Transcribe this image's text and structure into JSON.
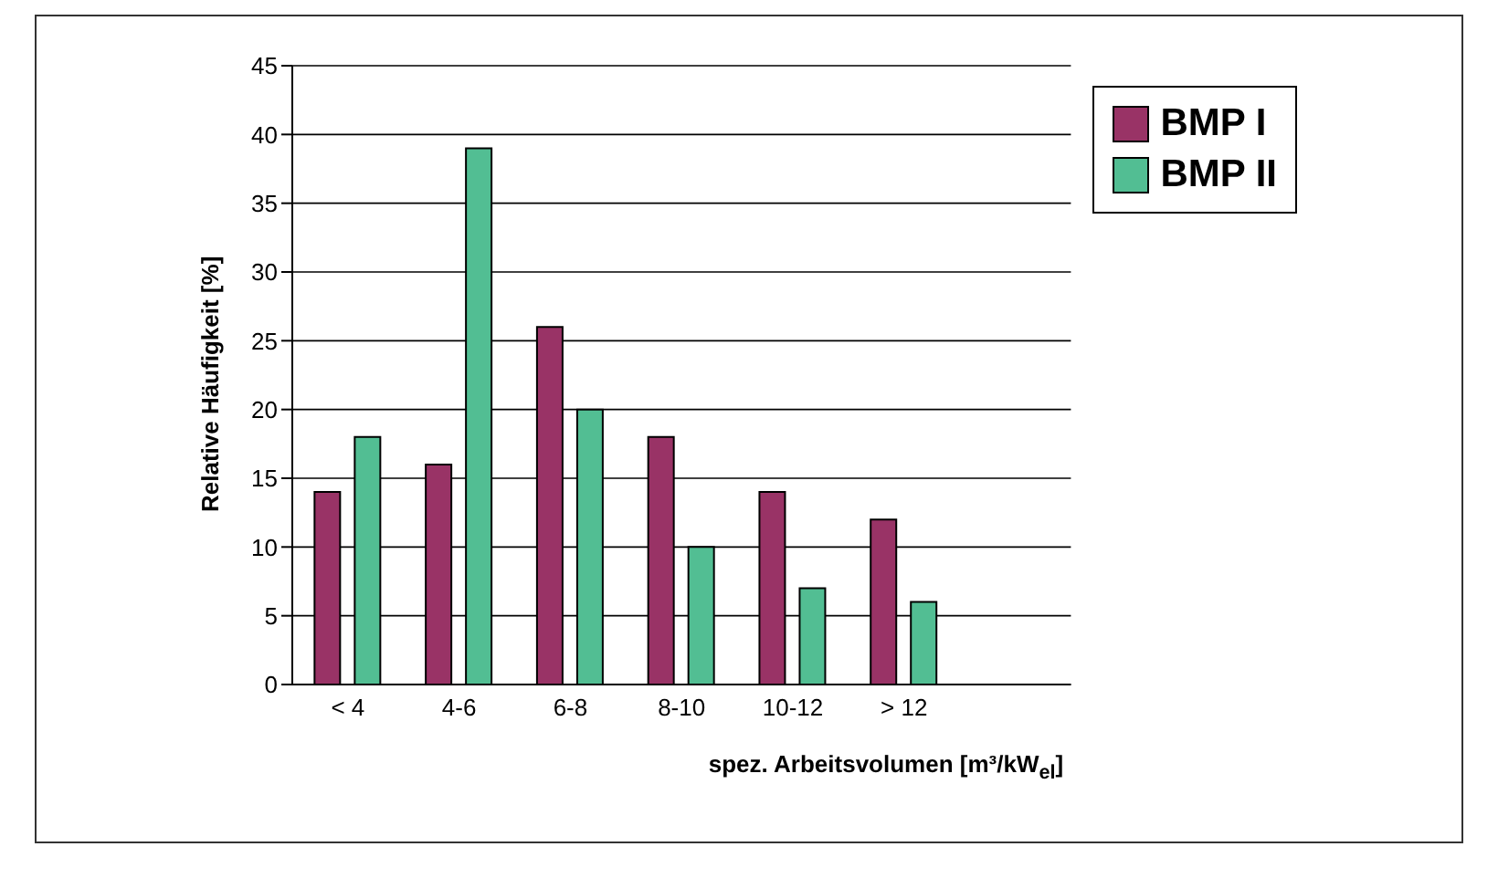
{
  "chart_data": {
    "type": "bar",
    "xlabel": "spez. Arbeitsvolumen [m³/kW$_{el}$]",
    "ylabel": "Relative Häufigkeit [%]",
    "categories": [
      "< 4",
      "4-6",
      "6-8",
      "8-10",
      "10-12",
      "> 12",
      null
    ],
    "series": [
      {
        "name": "BMP I",
        "color": "#993366",
        "values": [
          14,
          16,
          26,
          18,
          14,
          12,
          null
        ]
      },
      {
        "name": "BMP II",
        "color": "#52be93",
        "values": [
          18,
          39,
          20,
          10,
          7,
          6,
          null
        ]
      }
    ],
    "ylim": [
      0,
      45
    ],
    "yticks": [
      0,
      5,
      10,
      15,
      20,
      25,
      30,
      35,
      40,
      45
    ],
    "grid": "y",
    "legend": "top right"
  }
}
